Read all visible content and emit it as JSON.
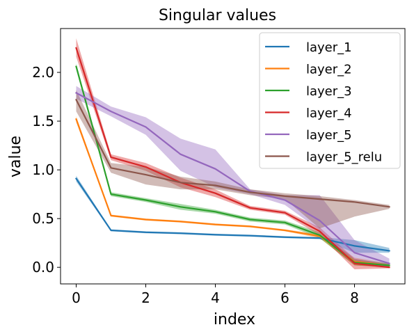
{
  "chart_data": {
    "type": "line",
    "title": "Singular values",
    "xlabel": "index",
    "ylabel": "value",
    "xlim": [
      -0.45,
      9.45
    ],
    "ylim": [
      -0.17,
      2.45
    ],
    "xticks": [
      0,
      2,
      4,
      6,
      8
    ],
    "xtick_labels": [
      "0",
      "2",
      "4",
      "6",
      "8"
    ],
    "yticks": [
      0.0,
      0.5,
      1.0,
      1.5,
      2.0
    ],
    "ytick_labels": [
      "0.0",
      "0.5",
      "1.0",
      "1.5",
      "2.0"
    ],
    "grid": false,
    "legend_position": "top-right",
    "x": [
      0,
      1,
      2,
      3,
      4,
      5,
      6,
      7,
      8,
      9
    ],
    "series": [
      {
        "name": "layer_1",
        "color": "#1f77b4",
        "values": [
          0.91,
          0.38,
          0.36,
          0.35,
          0.335,
          0.325,
          0.31,
          0.3,
          0.22,
          0.17
        ],
        "lower": [
          0.88,
          0.37,
          0.35,
          0.34,
          0.325,
          0.315,
          0.3,
          0.29,
          0.15,
          0.15
        ],
        "upper": [
          0.94,
          0.39,
          0.37,
          0.36,
          0.345,
          0.335,
          0.32,
          0.31,
          0.28,
          0.2
        ]
      },
      {
        "name": "layer_2",
        "color": "#ff7f0e",
        "values": [
          1.52,
          0.53,
          0.49,
          0.47,
          0.44,
          0.42,
          0.38,
          0.32,
          0.06,
          0.02
        ],
        "lower": [
          1.49,
          0.52,
          0.48,
          0.46,
          0.43,
          0.41,
          0.37,
          0.3,
          0.02,
          0.0
        ],
        "upper": [
          1.55,
          0.54,
          0.5,
          0.48,
          0.45,
          0.43,
          0.39,
          0.34,
          0.1,
          0.04
        ]
      },
      {
        "name": "layer_3",
        "color": "#2ca02c",
        "values": [
          2.06,
          0.75,
          0.69,
          0.62,
          0.57,
          0.49,
          0.46,
          0.33,
          0.05,
          0.02
        ],
        "lower": [
          2.03,
          0.73,
          0.67,
          0.59,
          0.55,
          0.47,
          0.44,
          0.3,
          0.02,
          0.0
        ],
        "upper": [
          2.09,
          0.77,
          0.71,
          0.65,
          0.59,
          0.51,
          0.48,
          0.36,
          0.08,
          0.04
        ]
      },
      {
        "name": "layer_4",
        "color": "#d62728",
        "values": [
          2.25,
          1.13,
          1.03,
          0.87,
          0.76,
          0.61,
          0.56,
          0.37,
          0.04,
          0.0
        ],
        "lower": [
          2.16,
          1.1,
          0.99,
          0.82,
          0.72,
          0.59,
          0.54,
          0.33,
          -0.02,
          -0.01
        ],
        "upper": [
          2.35,
          1.16,
          1.07,
          0.92,
          0.8,
          0.63,
          0.58,
          0.41,
          0.09,
          0.03
        ]
      },
      {
        "name": "layer_5",
        "color": "#9467bd",
        "values": [
          1.79,
          1.6,
          1.44,
          1.16,
          1.01,
          0.78,
          0.69,
          0.48,
          0.15,
          0.04
        ],
        "lower": [
          1.73,
          1.55,
          1.36,
          0.99,
          0.82,
          0.75,
          0.64,
          0.38,
          0.05,
          0.0
        ],
        "upper": [
          1.86,
          1.65,
          1.54,
          1.32,
          1.21,
          0.8,
          0.74,
          0.74,
          0.28,
          0.09
        ]
      },
      {
        "name": "layer_5_relu",
        "color": "#8c564b",
        "values": [
          1.72,
          1.02,
          0.95,
          0.87,
          0.84,
          0.77,
          0.73,
          0.7,
          0.67,
          0.62
        ],
        "lower": [
          1.6,
          0.97,
          0.85,
          0.8,
          0.8,
          0.74,
          0.7,
          0.4,
          0.52,
          0.6
        ],
        "upper": [
          1.82,
          1.07,
          1.03,
          0.93,
          0.88,
          0.8,
          0.76,
          0.73,
          0.69,
          0.64
        ]
      }
    ]
  }
}
